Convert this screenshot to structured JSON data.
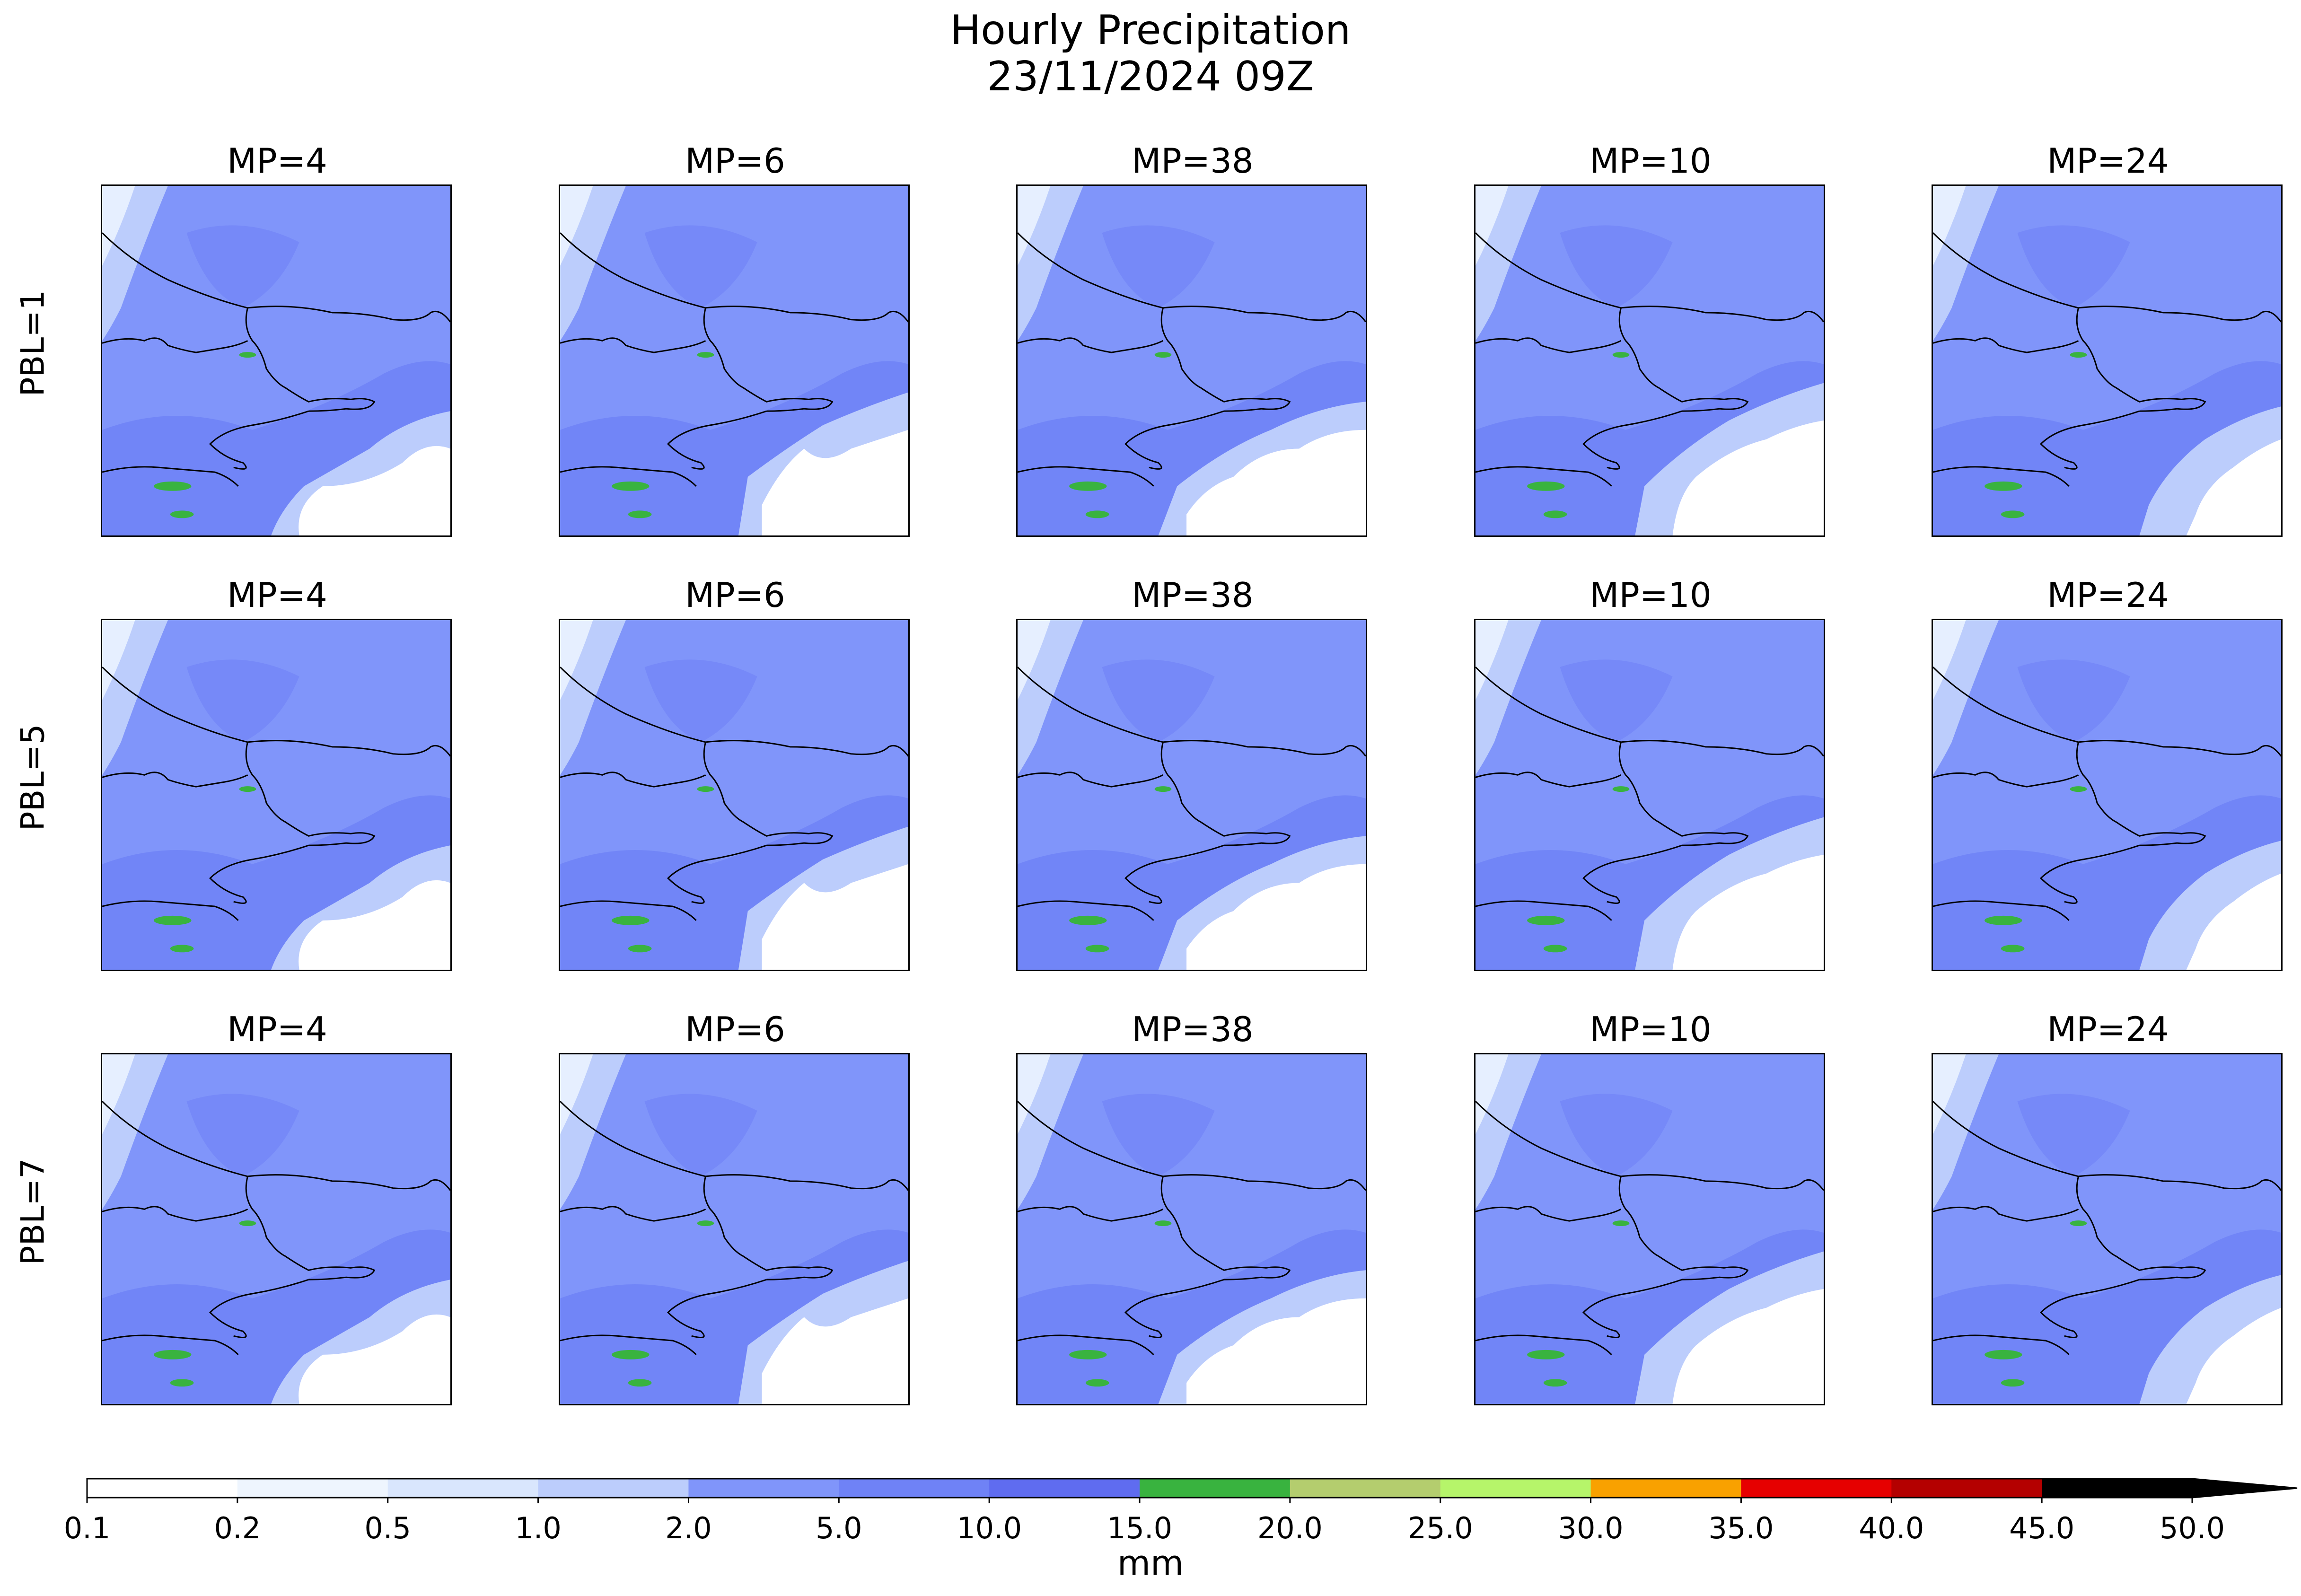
{
  "title": {
    "line1": "Hourly Precipitation",
    "line2": "23/11/2024 09Z"
  },
  "rows": [
    {
      "label": "PBL=1",
      "panels": [
        "MP=4",
        "MP=6",
        "MP=38",
        "MP=10",
        "MP=24"
      ]
    },
    {
      "label": "PBL=5",
      "panels": [
        "MP=4",
        "MP=6",
        "MP=38",
        "MP=10",
        "MP=24"
      ]
    },
    {
      "label": "PBL=7",
      "panels": [
        "MP=4",
        "MP=6",
        "MP=38",
        "MP=10",
        "MP=24"
      ]
    }
  ],
  "colorbar": {
    "label": "mm",
    "ticks": [
      "0.1",
      "0.2",
      "0.5",
      "1.0",
      "2.0",
      "5.0",
      "10.0",
      "15.0",
      "20.0",
      "25.0",
      "30.0",
      "35.0",
      "40.0",
      "45.0",
      "50.0"
    ],
    "colors": [
      "#ffffff",
      "#eef5fe",
      "#d9e6fd",
      "#bccdfc",
      "#8095fa",
      "#6f82f6",
      "#5f6cf0",
      "#39b33f",
      "#b4cd6e",
      "#b6f56a",
      "#f9a100",
      "#e60000",
      "#b40000",
      "#000000"
    ],
    "extend": "max"
  }
}
